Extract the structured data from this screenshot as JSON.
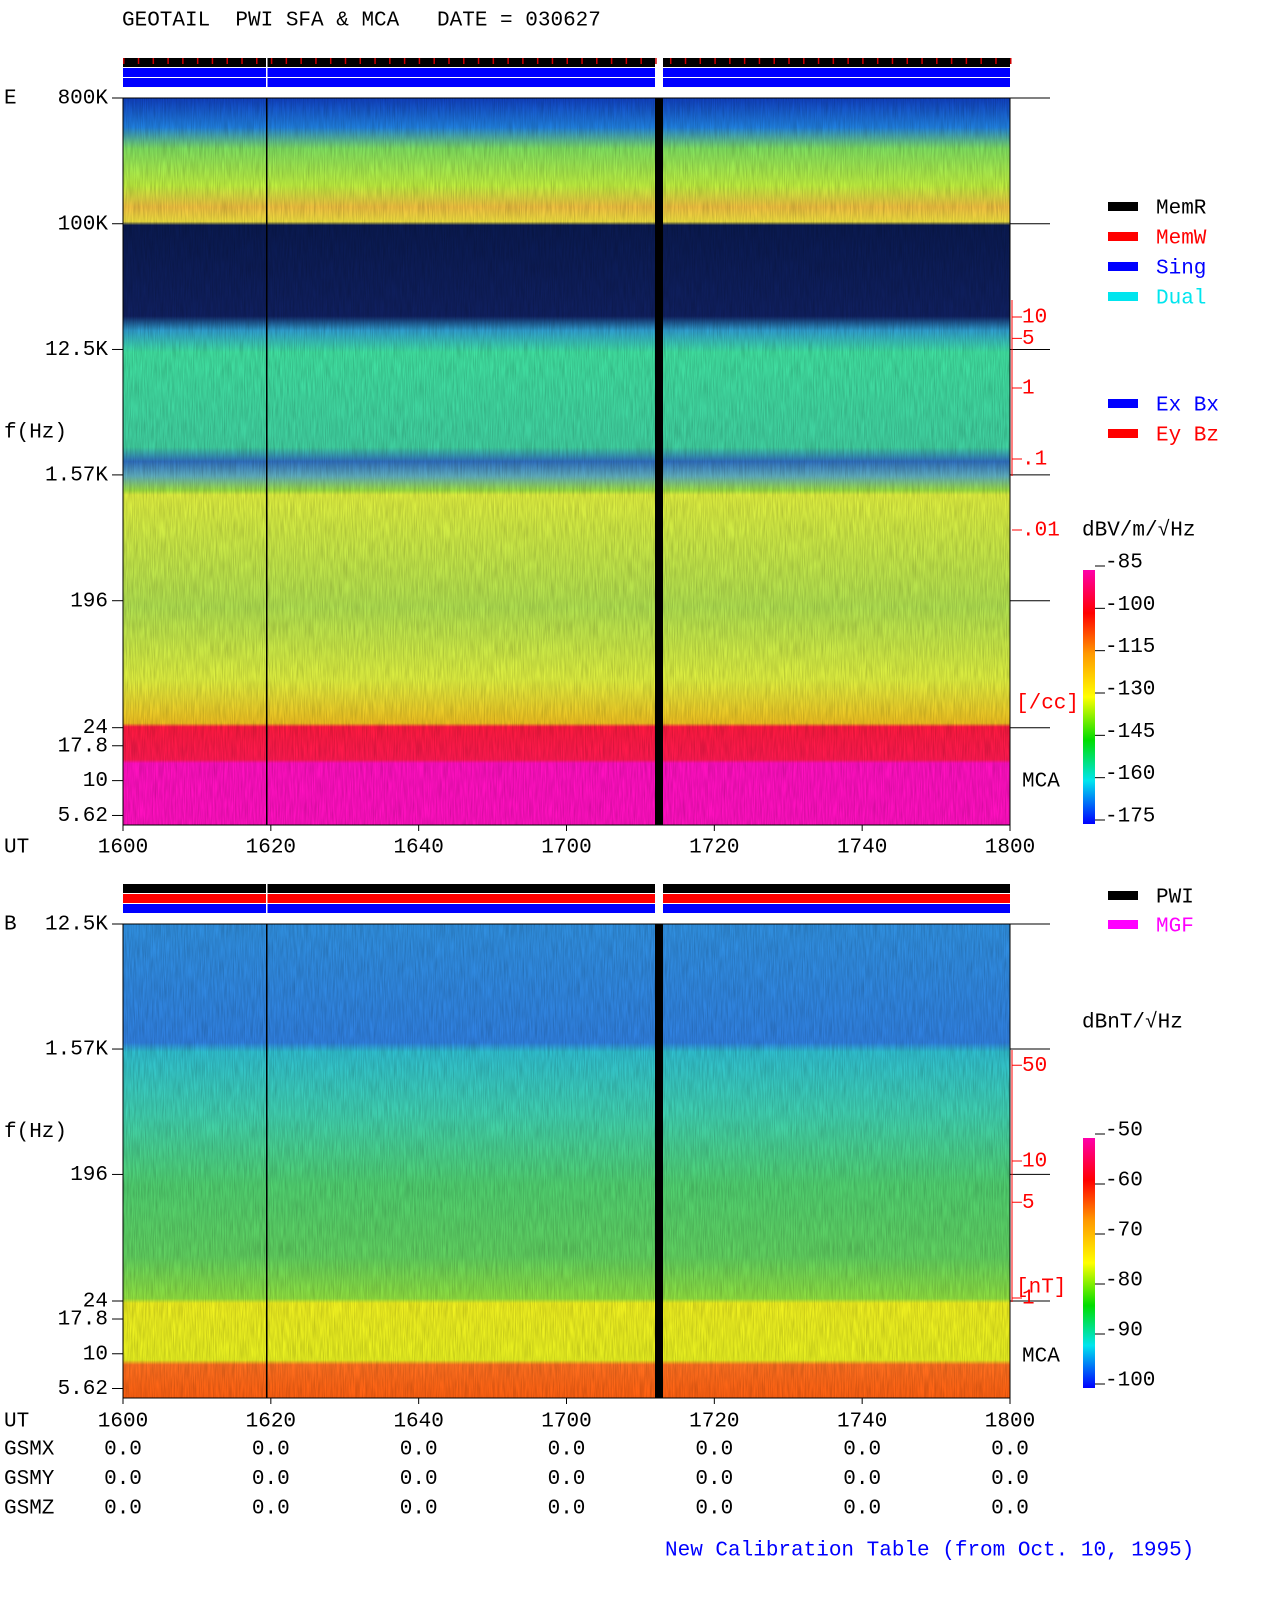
{
  "header": {
    "title": "GEOTAIL  PWI SFA & MCA   DATE = 030627",
    "footer": "New Calibration Table (from Oct. 10, 1995)"
  },
  "chart_data": [
    {
      "type": "spectrogram",
      "panel_label": "E",
      "ylabel": "f(Hz)",
      "xlabel": "UT",
      "log_y": true,
      "ylim": [
        4.8,
        800000
      ],
      "yticks": [
        {
          "value": 800000,
          "label": "800K"
        },
        {
          "value": 100000,
          "label": "100K"
        },
        {
          "value": 12500,
          "label": "12.5K"
        },
        {
          "value": 1570,
          "label": "1.57K"
        },
        196,
        24,
        17.8,
        10,
        5.62
      ],
      "x_labels": [
        "1600",
        "1620",
        "1640",
        "1700",
        "1720",
        "1740",
        "1800"
      ],
      "mca_label": "MCA",
      "colorbar": {
        "label": "dBV/m/√Hz",
        "clim": [
          -175,
          -85
        ],
        "ticks": [
          -85,
          -100,
          -115,
          -130,
          -145,
          -160,
          -175
        ]
      },
      "density_scale": {
        "unit_label": "[/cc]",
        "ticks": [
          10,
          5,
          1,
          {
            "value": 0.1,
            "label": ".1"
          },
          {
            "value": 0.01,
            "label": ".01"
          }
        ]
      },
      "legends": [
        [
          {
            "name": "MemR",
            "color": "#000000"
          },
          {
            "name": "MemW",
            "color": "#ff0000"
          },
          {
            "name": "Sing",
            "color": "#0000ff"
          },
          {
            "name": "Dual",
            "color": "#00e5ee"
          }
        ],
        [
          {
            "name": "Ex Bx",
            "color": "#0000ff"
          },
          {
            "name": "Ey Bz",
            "color": "#ff0000"
          }
        ]
      ]
    },
    {
      "type": "spectrogram",
      "panel_label": "B",
      "ylabel": "f(Hz)",
      "xlabel": "UT",
      "log_y": true,
      "ylim": [
        4.8,
        12500
      ],
      "yticks": [
        {
          "value": 12500,
          "label": "12.5K"
        },
        {
          "value": 1570,
          "label": "1.57K"
        },
        196,
        24,
        17.8,
        10,
        5.62
      ],
      "x_labels": [
        "1600",
        "1620",
        "1640",
        "1700",
        "1720",
        "1740",
        "1800"
      ],
      "mca_label": "MCA",
      "colorbar": {
        "label": "dBnT/√Hz",
        "clim": [
          -100,
          -50
        ],
        "ticks": [
          -50,
          -60,
          -70,
          -80,
          -90,
          -100
        ]
      },
      "density_scale": {
        "unit_label": "[nT]",
        "ticks": [
          50,
          10,
          5,
          1
        ]
      },
      "legends": [
        [
          {
            "name": "PWI",
            "color": "#000000"
          },
          {
            "name": "MGF",
            "color": "#ff00ff"
          }
        ]
      ]
    }
  ],
  "position": {
    "labels": [
      "GSMX",
      "GSMY",
      "GSMZ"
    ],
    "rows": [
      [
        "0.0",
        "0.0",
        "0.0",
        "0.0",
        "0.0",
        "0.0",
        "0.0"
      ],
      [
        "0.0",
        "0.0",
        "0.0",
        "0.0",
        "0.0",
        "0.0",
        "0.0"
      ],
      [
        "0.0",
        "0.0",
        "0.0",
        "0.0",
        "0.0",
        "0.0",
        "0.0"
      ]
    ]
  }
}
